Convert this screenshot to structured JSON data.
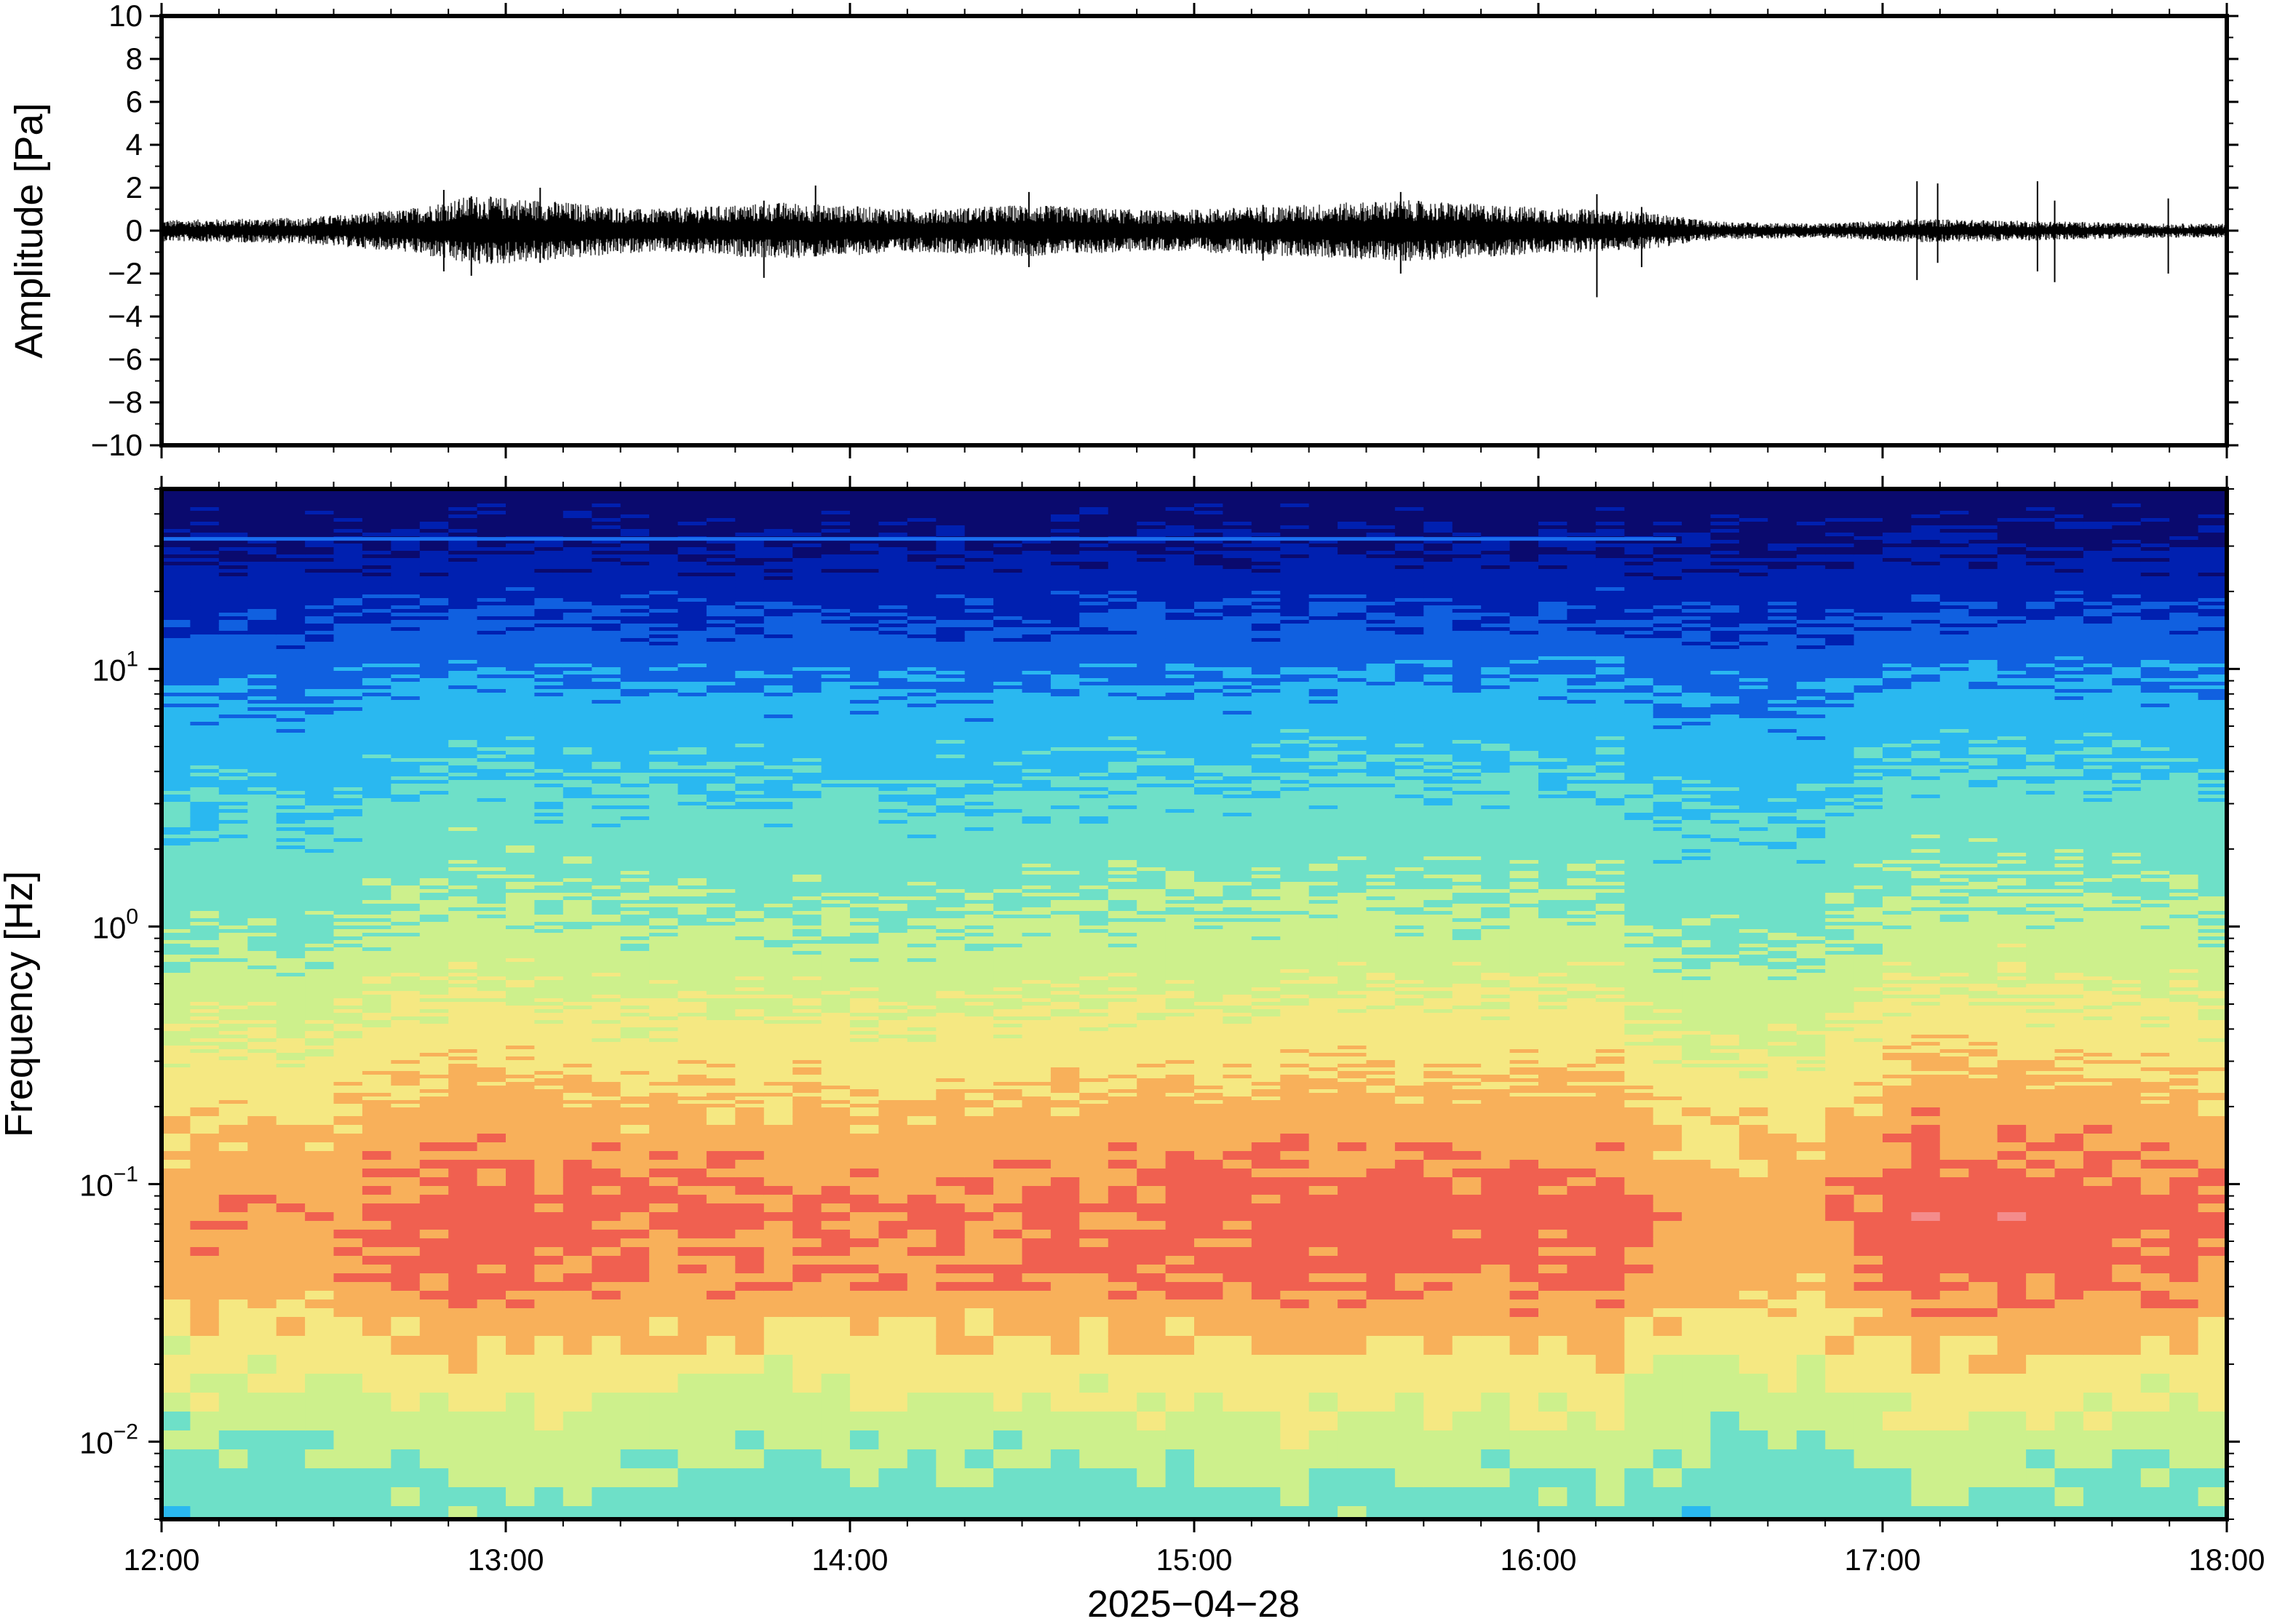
{
  "chart_data": [
    {
      "type": "line",
      "ylabel": "Amplitude [Pa]",
      "xlabel": "",
      "ylim": [
        -10,
        10
      ],
      "yticks": [
        10,
        8,
        6,
        4,
        2,
        0,
        -2,
        -4,
        -6,
        -8,
        -10
      ],
      "ytick_labels": [
        "10",
        "8",
        "6",
        "4",
        "2",
        "0",
        "−2",
        "−4",
        "−6",
        "−8",
        "−10"
      ],
      "xlim_hours": [
        12,
        18
      ],
      "line_color": "#000000",
      "envelope": [
        {
          "t": 12.0,
          "amp": 0.45
        },
        {
          "t": 12.4,
          "amp": 0.55
        },
        {
          "t": 12.7,
          "amp": 0.9
        },
        {
          "t": 12.9,
          "amp": 1.5
        },
        {
          "t": 13.1,
          "amp": 1.3
        },
        {
          "t": 13.4,
          "amp": 0.9
        },
        {
          "t": 13.8,
          "amp": 1.2
        },
        {
          "t": 14.2,
          "amp": 0.9
        },
        {
          "t": 14.5,
          "amp": 1.1
        },
        {
          "t": 14.9,
          "amp": 0.85
        },
        {
          "t": 15.3,
          "amp": 1.1
        },
        {
          "t": 15.6,
          "amp": 1.3
        },
        {
          "t": 16.0,
          "amp": 1.0
        },
        {
          "t": 16.3,
          "amp": 0.8
        },
        {
          "t": 16.5,
          "amp": 0.4
        },
        {
          "t": 16.8,
          "amp": 0.3
        },
        {
          "t": 17.1,
          "amp": 0.5
        },
        {
          "t": 17.5,
          "amp": 0.4
        },
        {
          "t": 17.8,
          "amp": 0.3
        },
        {
          "t": 18.0,
          "amp": 0.3
        }
      ],
      "spikes": [
        {
          "t": 12.82,
          "max": 1.9,
          "min": -1.9
        },
        {
          "t": 12.9,
          "max": 1.6,
          "min": -2.1
        },
        {
          "t": 13.1,
          "max": 2.0,
          "min": -1.5
        },
        {
          "t": 13.75,
          "max": 1.4,
          "min": -2.2
        },
        {
          "t": 13.9,
          "max": 2.1,
          "min": -1.2
        },
        {
          "t": 14.52,
          "max": 1.8,
          "min": -1.7
        },
        {
          "t": 15.2,
          "max": 1.2,
          "min": -1.4
        },
        {
          "t": 15.6,
          "max": 1.8,
          "min": -2.0
        },
        {
          "t": 16.17,
          "max": 1.7,
          "min": -3.1
        },
        {
          "t": 16.3,
          "max": 1.1,
          "min": -1.7
        },
        {
          "t": 17.1,
          "max": 2.3,
          "min": -2.3
        },
        {
          "t": 17.16,
          "max": 2.2,
          "min": -1.5
        },
        {
          "t": 17.45,
          "max": 2.3,
          "min": -1.9
        },
        {
          "t": 17.5,
          "max": 1.4,
          "min": -2.4
        },
        {
          "t": 17.83,
          "max": 1.5,
          "min": -2.0
        }
      ]
    },
    {
      "type": "heatmap",
      "ylabel": "Frequency [Hz]",
      "xlabel": "2025−04−28",
      "y_scale": "log",
      "ylim": [
        0.005,
        50
      ],
      "yticks": [
        {
          "value": 10,
          "base": "10",
          "exp": "1"
        },
        {
          "value": 1,
          "base": "10",
          "exp": "0"
        },
        {
          "value": 0.1,
          "base": "10",
          "exp": "−1"
        },
        {
          "value": 0.01,
          "base": "10",
          "exp": "−2"
        }
      ],
      "xticks": [
        {
          "hour": 12,
          "label": "12:00"
        },
        {
          "hour": 13,
          "label": "13:00"
        },
        {
          "hour": 14,
          "label": "14:00"
        },
        {
          "hour": 15,
          "label": "15:00"
        },
        {
          "hour": 16,
          "label": "16:00"
        },
        {
          "hour": 17,
          "label": "17:00"
        },
        {
          "hour": 18,
          "label": "18:00"
        }
      ],
      "colormap": [
        "#0a0a6e",
        "#0020b0",
        "#1060e0",
        "#2ab8f0",
        "#6ee0c8",
        "#cdf08c",
        "#f5e882",
        "#f8b05a",
        "#f06050",
        "#f48c8c"
      ],
      "columns": [
        {
          "t": 12.0,
          "peak": 0.55
        },
        {
          "t": 12.5,
          "peak": 0.6
        },
        {
          "t": 12.9,
          "peak": 0.9
        },
        {
          "t": 13.3,
          "peak": 0.75
        },
        {
          "t": 13.8,
          "peak": 0.7
        },
        {
          "t": 14.3,
          "peak": 0.7
        },
        {
          "t": 14.8,
          "peak": 0.75
        },
        {
          "t": 15.1,
          "peak": 0.8
        },
        {
          "t": 15.4,
          "peak": 0.85
        },
        {
          "t": 15.8,
          "peak": 0.8
        },
        {
          "t": 16.2,
          "peak": 0.85
        },
        {
          "t": 16.4,
          "peak": 0.55
        },
        {
          "t": 16.8,
          "peak": 0.5
        },
        {
          "t": 17.15,
          "peak": 0.95
        },
        {
          "t": 17.5,
          "peak": 0.85
        },
        {
          "t": 17.8,
          "peak": 0.8
        },
        {
          "t": 18.0,
          "peak": 0.75
        }
      ],
      "spectrum_profile": [
        {
          "f": 50,
          "level": 0.0
        },
        {
          "f": 30,
          "level": 0.05
        },
        {
          "f": 15,
          "level": 0.18
        },
        {
          "f": 8,
          "level": 0.3
        },
        {
          "f": 3,
          "level": 0.42
        },
        {
          "f": 1,
          "level": 0.52
        },
        {
          "f": 0.4,
          "level": 0.65
        },
        {
          "f": 0.2,
          "level": 0.76
        },
        {
          "f": 0.08,
          "level": 0.88
        },
        {
          "f": 0.04,
          "level": 0.84
        },
        {
          "f": 0.02,
          "level": 0.68
        },
        {
          "f": 0.01,
          "level": 0.55
        },
        {
          "f": 0.005,
          "level": 0.45
        }
      ],
      "spectral_line": {
        "f": 32,
        "until_hour": 16.4,
        "color": "#1a6ff0"
      }
    }
  ]
}
